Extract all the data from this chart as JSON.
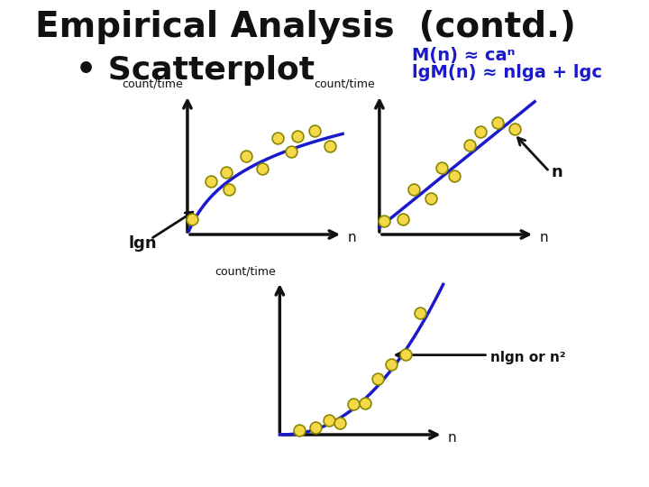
{
  "title": "Empirical Analysis  (contd.)",
  "title_fontsize": 28,
  "bg_color": "#ffffff",
  "bullet": "• Scatterplot",
  "bullet_fontsize": 26,
  "formula_line1": "M(n) ≈ caⁿ",
  "formula_line2": "lgM(n) ≈ nlga + lgc",
  "formula_color": "#1a1acc",
  "formula_fontsize": 14,
  "curve_color": "#1a1acc",
  "dot_color": "#f5d84a",
  "dot_edge": "#888800",
  "axis_color": "#111111",
  "arrow_color": "#111111",
  "label_ct1": "count/time",
  "label_ct2": "count/time",
  "label_ct3": "count/time",
  "label_lgn": "lgn",
  "label_n1": "n",
  "label_n2": "n",
  "label_n3": "n",
  "arrow_label1": "lgn",
  "arrow_label2": "n",
  "arrow_label3": "nlgn or n²"
}
